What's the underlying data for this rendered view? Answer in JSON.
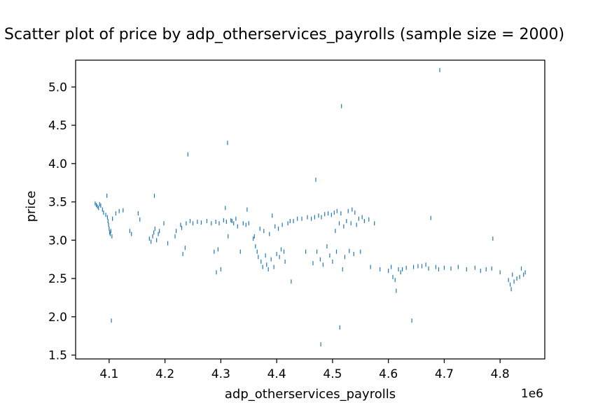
{
  "chart_data": {
    "type": "scatter",
    "title": "Scatter plot of price by adp_otherservices_payrolls (sample size = 2000)",
    "xlabel": "adp_otherservices_payrolls",
    "ylabel": "price",
    "x_scale_label": "1e6",
    "x_multiplier": 1000000,
    "xlim": [
      4.04,
      4.88
    ],
    "ylim": [
      1.45,
      5.35
    ],
    "x_ticks": [
      4.1,
      4.2,
      4.3,
      4.4,
      4.5,
      4.6,
      4.7,
      4.8
    ],
    "y_ticks": [
      1.5,
      2.0,
      2.5,
      3.0,
      3.5,
      4.0,
      4.5,
      5.0
    ],
    "x_tick_labels": [
      "4.1",
      "4.2",
      "4.3",
      "4.4",
      "4.5",
      "4.6",
      "4.7",
      "4.8"
    ],
    "y_tick_labels": [
      "1.5",
      "2.0",
      "2.5",
      "3.0",
      "3.5",
      "4.0",
      "4.5",
      "5.0"
    ],
    "grid": false,
    "marker_color": "#1f77b4",
    "marker": "vertical-line",
    "points": [
      [
        4.075,
        3.48
      ],
      [
        4.077,
        3.46
      ],
      [
        4.079,
        3.44
      ],
      [
        4.081,
        3.42
      ],
      [
        4.083,
        3.47
      ],
      [
        4.085,
        3.45
      ],
      [
        4.088,
        3.4
      ],
      [
        4.09,
        3.36
      ],
      [
        4.094,
        3.33
      ],
      [
        4.096,
        3.58
      ],
      [
        4.097,
        3.3
      ],
      [
        4.098,
        3.25
      ],
      [
        4.099,
        3.2
      ],
      [
        4.1,
        3.15
      ],
      [
        4.101,
        3.1
      ],
      [
        4.102,
        3.08
      ],
      [
        4.103,
        3.12
      ],
      [
        4.105,
        3.05
      ],
      [
        4.106,
        3.28
      ],
      [
        4.104,
        1.95
      ],
      [
        4.112,
        3.35
      ],
      [
        4.118,
        3.38
      ],
      [
        4.125,
        3.39
      ],
      [
        4.137,
        3.12
      ],
      [
        4.14,
        3.08
      ],
      [
        4.152,
        3.35
      ],
      [
        4.155,
        3.27
      ],
      [
        4.172,
        3.02
      ],
      [
        4.175,
        2.98
      ],
      [
        4.178,
        3.05
      ],
      [
        4.18,
        3.1
      ],
      [
        4.182,
        3.15
      ],
      [
        4.181,
        3.58
      ],
      [
        4.185,
        3.0
      ],
      [
        4.188,
        3.08
      ],
      [
        4.19,
        3.12
      ],
      [
        4.198,
        3.22
      ],
      [
        4.205,
        2.96
      ],
      [
        4.218,
        3.05
      ],
      [
        4.22,
        3.12
      ],
      [
        4.228,
        3.2
      ],
      [
        4.23,
        3.16
      ],
      [
        4.232,
        2.82
      ],
      [
        4.236,
        2.9
      ],
      [
        4.238,
        3.22
      ],
      [
        4.241,
        4.12
      ],
      [
        4.245,
        3.25
      ],
      [
        4.25,
        3.22
      ],
      [
        4.258,
        3.24
      ],
      [
        4.265,
        3.23
      ],
      [
        4.275,
        3.25
      ],
      [
        4.283,
        3.22
      ],
      [
        4.288,
        2.85
      ],
      [
        4.291,
        3.24
      ],
      [
        4.292,
        2.58
      ],
      [
        4.295,
        2.88
      ],
      [
        4.297,
        3.22
      ],
      [
        4.3,
        2.62
      ],
      [
        4.305,
        3.26
      ],
      [
        4.308,
        3.42
      ],
      [
        4.31,
        3.24
      ],
      [
        4.312,
        4.27
      ],
      [
        4.313,
        3.05
      ],
      [
        4.318,
        3.26
      ],
      [
        4.32,
        3.25
      ],
      [
        4.323,
        3.22
      ],
      [
        4.327,
        3.28
      ],
      [
        4.33,
        3.18
      ],
      [
        4.335,
        2.85
      ],
      [
        4.34,
        3.22
      ],
      [
        4.345,
        3.2
      ],
      [
        4.347,
        3.4
      ],
      [
        4.35,
        3.22
      ],
      [
        4.358,
        3.02
      ],
      [
        4.36,
        3.05
      ],
      [
        4.362,
        2.92
      ],
      [
        4.365,
        2.85
      ],
      [
        4.367,
        2.78
      ],
      [
        4.37,
        3.15
      ],
      [
        4.372,
        2.72
      ],
      [
        4.375,
        2.65
      ],
      [
        4.377,
        3.12
      ],
      [
        4.38,
        2.8
      ],
      [
        4.382,
        2.68
      ],
      [
        4.385,
        2.62
      ],
      [
        4.387,
        3.08
      ],
      [
        4.39,
        2.75
      ],
      [
        4.392,
        3.32
      ],
      [
        4.395,
        2.65
      ],
      [
        4.397,
        3.18
      ],
      [
        4.4,
        2.82
      ],
      [
        4.403,
        3.15
      ],
      [
        4.405,
        2.78
      ],
      [
        4.408,
        2.88
      ],
      [
        4.41,
        3.2
      ],
      [
        4.413,
        2.85
      ],
      [
        4.415,
        2.72
      ],
      [
        4.42,
        3.22
      ],
      [
        4.424,
        3.25
      ],
      [
        4.426,
        2.46
      ],
      [
        4.43,
        3.25
      ],
      [
        4.437,
        3.28
      ],
      [
        4.445,
        3.28
      ],
      [
        4.452,
        2.85
      ],
      [
        4.455,
        3.3
      ],
      [
        4.462,
        3.28
      ],
      [
        4.465,
        2.7
      ],
      [
        4.468,
        3.3
      ],
      [
        4.47,
        3.79
      ],
      [
        4.472,
        2.85
      ],
      [
        4.475,
        3.32
      ],
      [
        4.478,
        2.75
      ],
      [
        4.479,
        1.64
      ],
      [
        4.48,
        3.3
      ],
      [
        4.483,
        2.68
      ],
      [
        4.486,
        3.34
      ],
      [
        4.49,
        2.92
      ],
      [
        4.492,
        3.35
      ],
      [
        4.495,
        2.8
      ],
      [
        4.498,
        3.33
      ],
      [
        4.5,
        2.72
      ],
      [
        4.503,
        3.36
      ],
      [
        4.505,
        3.12
      ],
      [
        4.507,
        2.85
      ],
      [
        4.508,
        3.38
      ],
      [
        4.512,
        3.22
      ],
      [
        4.513,
        1.86
      ],
      [
        4.515,
        3.35
      ],
      [
        4.516,
        4.75
      ],
      [
        4.518,
        2.62
      ],
      [
        4.52,
        3.18
      ],
      [
        4.522,
        2.78
      ],
      [
        4.525,
        3.25
      ],
      [
        4.528,
        3.38
      ],
      [
        4.53,
        2.86
      ],
      [
        4.533,
        3.22
      ],
      [
        4.535,
        3.4
      ],
      [
        4.538,
        2.82
      ],
      [
        4.54,
        3.36
      ],
      [
        4.543,
        3.2
      ],
      [
        4.547,
        3.28
      ],
      [
        4.55,
        2.85
      ],
      [
        4.553,
        3.3
      ],
      [
        4.557,
        3.25
      ],
      [
        4.565,
        3.27
      ],
      [
        4.568,
        2.65
      ],
      [
        4.575,
        3.22
      ],
      [
        4.585,
        2.62
      ],
      [
        4.6,
        2.6
      ],
      [
        4.605,
        2.65
      ],
      [
        4.608,
        2.52
      ],
      [
        4.612,
        2.48
      ],
      [
        4.614,
        2.34
      ],
      [
        4.618,
        2.62
      ],
      [
        4.622,
        2.58
      ],
      [
        4.625,
        2.62
      ],
      [
        4.632,
        2.64
      ],
      [
        4.642,
        1.95
      ],
      [
        4.645,
        2.65
      ],
      [
        4.653,
        2.66
      ],
      [
        4.66,
        2.66
      ],
      [
        4.667,
        2.68
      ],
      [
        4.672,
        2.63
      ],
      [
        4.676,
        3.29
      ],
      [
        4.685,
        2.65
      ],
      [
        4.69,
        2.62
      ],
      [
        4.692,
        5.22
      ],
      [
        4.7,
        2.64
      ],
      [
        4.712,
        2.63
      ],
      [
        4.725,
        2.65
      ],
      [
        4.74,
        2.62
      ],
      [
        4.755,
        2.64
      ],
      [
        4.765,
        2.6
      ],
      [
        4.775,
        2.62
      ],
      [
        4.785,
        2.63
      ],
      [
        4.787,
        3.02
      ],
      [
        4.8,
        2.58
      ],
      [
        4.815,
        2.48
      ],
      [
        4.818,
        2.42
      ],
      [
        4.82,
        2.36
      ],
      [
        4.822,
        2.55
      ],
      [
        4.825,
        2.46
      ],
      [
        4.83,
        2.5
      ],
      [
        4.835,
        2.52
      ],
      [
        4.838,
        2.63
      ],
      [
        4.842,
        2.55
      ],
      [
        4.845,
        2.58
      ]
    ]
  }
}
